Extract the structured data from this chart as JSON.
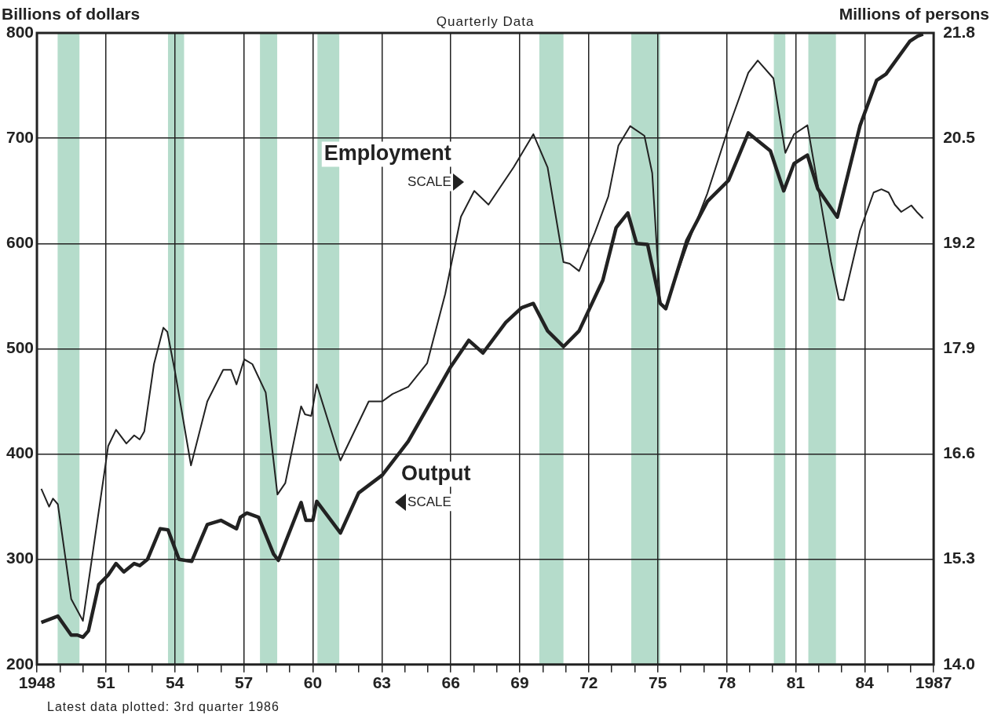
{
  "chart_data": {
    "type": "line",
    "title": "Quarterly Data",
    "ylabel": "Billions of dollars",
    "y2label": "Millions of persons",
    "series": [
      {
        "name": "Employment",
        "color": "#222222",
        "axis": "y2",
        "x": [
          1948.19,
          1948.53,
          1948.7,
          1948.91,
          1949.49,
          1950.0,
          1951.1,
          1951.44,
          1951.89,
          1952.23,
          1952.47,
          1952.67,
          1953.09,
          1953.5,
          1953.67,
          1954.01,
          1954.7,
          1955.41,
          1956.1,
          1956.44,
          1956.68,
          1957.02,
          1957.37,
          1957.95,
          1958.46,
          1958.8,
          1959.49,
          1959.66,
          1959.93,
          1960.17,
          1961.2,
          1962.43,
          1963.02,
          1963.46,
          1964.15,
          1964.97,
          1965.76,
          1966.44,
          1967.02,
          1967.64,
          1968.73,
          1969.59,
          1970.21,
          1970.9,
          1971.17,
          1971.58,
          1972.26,
          1972.85,
          1973.29,
          1973.8,
          1974.42,
          1974.76,
          1975.11,
          1975.35,
          1976.27,
          1977.16,
          1978.08,
          1978.94,
          1979.35,
          1980.03,
          1980.55,
          1980.93,
          1981.51,
          1982.54,
          1982.88,
          1983.09,
          1983.8,
          1984.39,
          1984.73,
          1985.04,
          1985.31,
          1985.59,
          1986.03,
          1986.3,
          1986.54
        ],
        "values": [
          16.17,
          15.95,
          16.05,
          15.98,
          14.81,
          14.54,
          16.7,
          16.9,
          16.73,
          16.83,
          16.78,
          16.88,
          17.71,
          18.16,
          18.11,
          17.61,
          16.46,
          17.25,
          17.64,
          17.64,
          17.46,
          17.77,
          17.71,
          17.36,
          16.1,
          16.24,
          17.19,
          17.09,
          17.07,
          17.46,
          16.52,
          17.25,
          17.25,
          17.34,
          17.43,
          17.72,
          18.58,
          19.53,
          19.85,
          19.68,
          20.14,
          20.55,
          20.14,
          18.97,
          18.95,
          18.86,
          19.33,
          19.78,
          20.41,
          20.65,
          20.53,
          20.07,
          18.46,
          18.42,
          19.17,
          19.82,
          20.63,
          21.31,
          21.46,
          21.24,
          20.32,
          20.55,
          20.66,
          18.97,
          18.51,
          18.5,
          19.36,
          19.83,
          19.87,
          19.83,
          19.68,
          19.59,
          19.67,
          19.58,
          19.51
        ]
      },
      {
        "name": "Output",
        "color": "#222222",
        "x": [
          1948.19,
          1948.91,
          1949.49,
          1949.76,
          1950.0,
          1950.24,
          1950.69,
          1951.1,
          1951.44,
          1951.78,
          1952.23,
          1952.47,
          1952.81,
          1953.36,
          1953.7,
          1954.18,
          1954.73,
          1955.41,
          1956.0,
          1956.68,
          1956.85,
          1957.13,
          1957.64,
          1958.29,
          1958.5,
          1959.49,
          1959.7,
          1960.0,
          1960.17,
          1961.2,
          1961.99,
          1963.02,
          1964.15,
          1966.0,
          1966.78,
          1967.4,
          1968.39,
          1969.08,
          1969.59,
          1970.21,
          1970.9,
          1971.58,
          1972.61,
          1973.19,
          1973.7,
          1974.08,
          1974.56,
          1975.11,
          1975.35,
          1976.27,
          1977.16,
          1978.08,
          1978.94,
          1979.9,
          1980.48,
          1980.93,
          1981.51,
          1981.96,
          1982.81,
          1983.8,
          1984.52,
          1984.93,
          1985.96,
          1986.3,
          1986.54
        ],
        "values": [
          240,
          246,
          228,
          228,
          226,
          232,
          276,
          285,
          296,
          288,
          296,
          294,
          300,
          329,
          328,
          300,
          298,
          333,
          337,
          329,
          340,
          344,
          340,
          305,
          299,
          354,
          337,
          337,
          355,
          325,
          363,
          380,
          412,
          483,
          508,
          496,
          525,
          539,
          543,
          517,
          502,
          517,
          565,
          615,
          629,
          600,
          599,
          543,
          538,
          603,
          640,
          660,
          705,
          688,
          650,
          676,
          684,
          652,
          625,
          712,
          755,
          761,
          792,
          797,
          799
        ]
      }
    ],
    "xlim": [
      1948,
      1987
    ],
    "xticks": [
      1948,
      {
        "value": 1949,
        "label": null
      },
      {
        "value": 1950,
        "label": null
      },
      {
        "value": 1951,
        "label": "51"
      },
      {
        "value": 1952,
        "label": null
      },
      {
        "value": 1953,
        "label": null
      },
      {
        "value": 1954,
        "label": "54"
      },
      {
        "value": 1955,
        "label": null
      },
      {
        "value": 1956,
        "label": null
      },
      {
        "value": 1957,
        "label": "57"
      },
      {
        "value": 1958,
        "label": null
      },
      {
        "value": 1959,
        "label": null
      },
      {
        "value": 1960,
        "label": "60"
      },
      {
        "value": 1961,
        "label": null
      },
      {
        "value": 1962,
        "label": null
      },
      {
        "value": 1963,
        "label": "63"
      },
      {
        "value": 1964,
        "label": null
      },
      {
        "value": 1965,
        "label": null
      },
      {
        "value": 1966,
        "label": "66"
      },
      {
        "value": 1967,
        "label": null
      },
      {
        "value": 1968,
        "label": null
      },
      {
        "value": 1969,
        "label": "69"
      },
      {
        "value": 1970,
        "label": null
      },
      {
        "value": 1971,
        "label": null
      },
      {
        "value": 1972,
        "label": "72"
      },
      {
        "value": 1973,
        "label": null
      },
      {
        "value": 1974,
        "label": null
      },
      {
        "value": 1975,
        "label": "75"
      },
      {
        "value": 1976,
        "label": null
      },
      {
        "value": 1977,
        "label": null
      },
      {
        "value": 1978,
        "label": "78"
      },
      {
        "value": 1979,
        "label": null
      },
      {
        "value": 1980,
        "label": null
      },
      {
        "value": 1981,
        "label": "81"
      },
      {
        "value": 1982,
        "label": null
      },
      {
        "value": 1983,
        "label": null
      },
      {
        "value": 1984,
        "label": "84"
      },
      {
        "value": 1985,
        "label": null
      },
      {
        "value": 1986,
        "label": null
      },
      1987
    ],
    "ylim": [
      200,
      800
    ],
    "yticks": [
      200,
      300,
      400,
      500,
      600,
      700,
      800
    ],
    "y2lim": [
      14,
      21.8
    ],
    "y2ticks": [
      {
        "value": 14,
        "label": "14.0"
      },
      15.3,
      16.6,
      17.9,
      19.2,
      20.5,
      21.8
    ],
    "bands": [
      {
        "axis": "x",
        "from": 1948.9,
        "to": 1949.85,
        "color": "#b5dccb"
      },
      {
        "axis": "x",
        "from": 1953.7,
        "to": 1954.4,
        "color": "#b5dccb"
      },
      {
        "axis": "x",
        "from": 1957.7,
        "to": 1958.45,
        "color": "#b5dccb"
      },
      {
        "axis": "x",
        "from": 1960.2,
        "to": 1961.15,
        "color": "#b5dccb"
      },
      {
        "axis": "x",
        "from": 1969.85,
        "to": 1970.9,
        "color": "#b5dccb"
      },
      {
        "axis": "x",
        "from": 1973.85,
        "to": 1975.1,
        "color": "#b5dccb"
      },
      {
        "axis": "x",
        "from": 1980.05,
        "to": 1980.55,
        "color": "#b5dccb"
      },
      {
        "axis": "x",
        "from": 1981.55,
        "to": 1982.75,
        "color": "#b5dccb"
      }
    ],
    "annotations": [
      "SCALE",
      "SCALE",
      "Latest data plotted: 3rd quarter 1986"
    ],
    "grid": true,
    "legend": false,
    "marker": "none",
    "line_style": "solid"
  }
}
